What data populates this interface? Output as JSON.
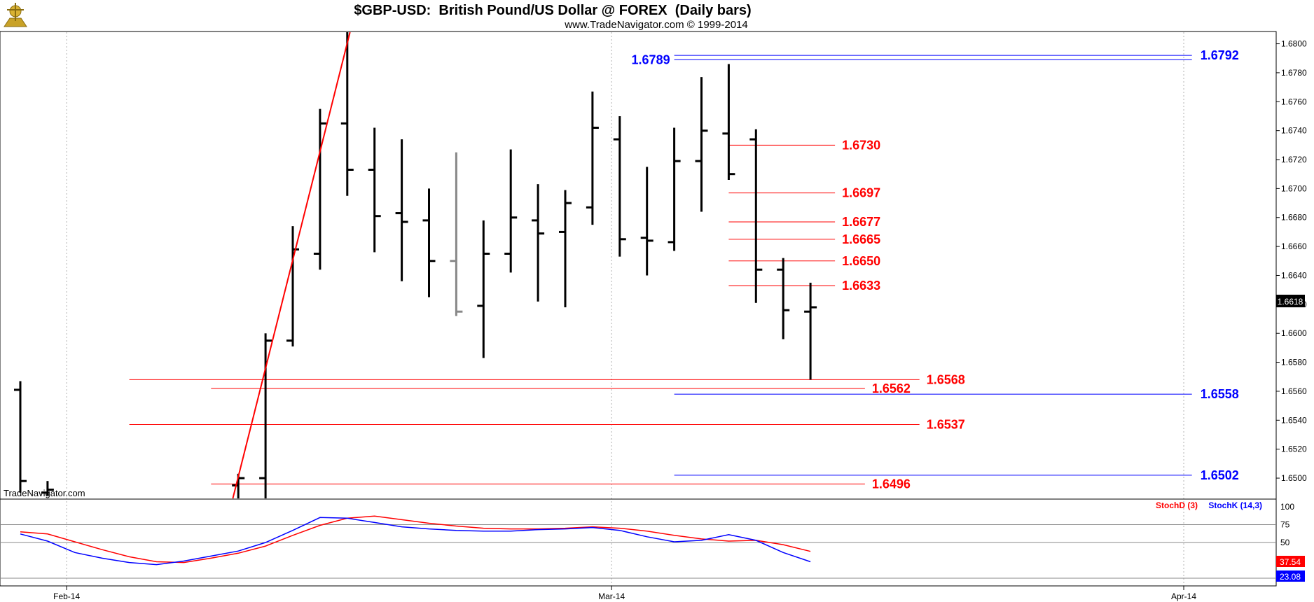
{
  "chart_data": {
    "type": "ohlc",
    "title": "$GBP-USD:  British Pound/US Dollar @ FOREX  (Daily bars)",
    "subtitle": "www.TradeNavigator.com © 1999-2014",
    "watermark": "TradeNavigator.com",
    "last_price": "1.6618",
    "y_ticks": [
      "1.6800",
      "1.6780",
      "1.6760",
      "1.6740",
      "1.6720",
      "1.6700",
      "1.6680",
      "1.6660",
      "1.6640",
      "1.6620",
      "1.6600",
      "1.6580",
      "1.6560",
      "1.6540",
      "1.6520",
      "1.6500"
    ],
    "ylim": [
      1.6486,
      1.6808
    ],
    "x_labels": [
      {
        "label": "Feb-14",
        "index": 1.7
      },
      {
        "label": "Mar-14",
        "index": 21.7
      },
      {
        "label": "Apr-14",
        "index": 42.7
      }
    ],
    "bars": [
      {
        "i": 0,
        "o": 1.6561,
        "h": 1.6567,
        "l": 1.649,
        "c": 1.6498,
        "color": "#000000"
      },
      {
        "i": 1,
        "o": 1.649,
        "h": 1.6498,
        "l": 1.6488,
        "c": 1.6492,
        "color": "#000000"
      },
      {
        "i": 8,
        "o": 1.6495,
        "h": 1.6503,
        "l": 1.648,
        "c": 1.65,
        "color": "#000000"
      },
      {
        "i": 9,
        "o": 1.65,
        "h": 1.66,
        "l": 1.6476,
        "c": 1.6595,
        "color": "#000000"
      },
      {
        "i": 10,
        "o": 1.6595,
        "h": 1.6674,
        "l": 1.6591,
        "c": 1.6658,
        "color": "#000000"
      },
      {
        "i": 11,
        "o": 1.6655,
        "h": 1.6755,
        "l": 1.6644,
        "c": 1.6745,
        "color": "#000000"
      },
      {
        "i": 12,
        "o": 1.6745,
        "h": 1.6808,
        "l": 1.6695,
        "c": 1.6713,
        "color": "#000000"
      },
      {
        "i": 13,
        "o": 1.6713,
        "h": 1.6742,
        "l": 1.6656,
        "c": 1.6681,
        "color": "#000000"
      },
      {
        "i": 14,
        "o": 1.6683,
        "h": 1.6734,
        "l": 1.6636,
        "c": 1.6677,
        "color": "#000000"
      },
      {
        "i": 15,
        "o": 1.6678,
        "h": 1.67,
        "l": 1.6625,
        "c": 1.665,
        "color": "#000000"
      },
      {
        "i": 16,
        "o": 1.665,
        "h": 1.6725,
        "l": 1.6612,
        "c": 1.6615,
        "color": "#888888"
      },
      {
        "i": 17,
        "o": 1.6619,
        "h": 1.6678,
        "l": 1.6583,
        "c": 1.6655,
        "color": "#000000"
      },
      {
        "i": 18,
        "o": 1.6655,
        "h": 1.6727,
        "l": 1.6642,
        "c": 1.668,
        "color": "#000000"
      },
      {
        "i": 19,
        "o": 1.6678,
        "h": 1.6703,
        "l": 1.6622,
        "c": 1.6669,
        "color": "#000000"
      },
      {
        "i": 20,
        "o": 1.667,
        "h": 1.6699,
        "l": 1.6618,
        "c": 1.669,
        "color": "#000000"
      },
      {
        "i": 21,
        "o": 1.6687,
        "h": 1.6767,
        "l": 1.6675,
        "c": 1.6742,
        "color": "#000000"
      },
      {
        "i": 22,
        "o": 1.6734,
        "h": 1.675,
        "l": 1.6653,
        "c": 1.6665,
        "color": "#000000"
      },
      {
        "i": 23,
        "o": 1.6666,
        "h": 1.6715,
        "l": 1.664,
        "c": 1.6664,
        "color": "#000000"
      },
      {
        "i": 24,
        "o": 1.6663,
        "h": 1.6742,
        "l": 1.6657,
        "c": 1.6719,
        "color": "#000000"
      },
      {
        "i": 25,
        "o": 1.6719,
        "h": 1.6777,
        "l": 1.6684,
        "c": 1.674,
        "color": "#000000"
      },
      {
        "i": 26,
        "o": 1.6738,
        "h": 1.6786,
        "l": 1.6706,
        "c": 1.671,
        "color": "#000000"
      },
      {
        "i": 27,
        "o": 1.6734,
        "h": 1.6741,
        "l": 1.6621,
        "c": 1.6644,
        "color": "#000000"
      },
      {
        "i": 28,
        "o": 1.6644,
        "h": 1.6652,
        "l": 1.6596,
        "c": 1.6616,
        "color": "#000000"
      },
      {
        "i": 29,
        "o": 1.6615,
        "h": 1.6635,
        "l": 1.6568,
        "c": 1.6618,
        "color": "#000000"
      }
    ],
    "trendline": {
      "from": {
        "i": 7.8,
        "p": 1.6486
      },
      "to": {
        "i": 12.1,
        "p": 1.6808
      },
      "color": "#ff0000"
    },
    "red_levels": [
      {
        "value": "1.6730",
        "p": 1.673,
        "from": 26.0,
        "to": 29.9
      },
      {
        "value": "1.6697",
        "p": 1.6697,
        "from": 26.0,
        "to": 29.9
      },
      {
        "value": "1.6677",
        "p": 1.6677,
        "from": 26.0,
        "to": 29.9
      },
      {
        "value": "1.6665",
        "p": 1.6665,
        "from": 26.0,
        "to": 29.9
      },
      {
        "value": "1.6650",
        "p": 1.665,
        "from": 26.0,
        "to": 29.9
      },
      {
        "value": "1.6633",
        "p": 1.6633,
        "from": 26.0,
        "to": 29.9
      },
      {
        "value": "1.6568",
        "p": 1.6568,
        "from": 4.0,
        "to": 33.0
      },
      {
        "value": "1.6562",
        "p": 1.6562,
        "from": 7.0,
        "to": 31.0
      },
      {
        "value": "1.6537",
        "p": 1.6537,
        "from": 4.0,
        "to": 33.0
      },
      {
        "value": "1.6496",
        "p": 1.6496,
        "from": 7.0,
        "to": 31.0
      }
    ],
    "blue_levels": [
      {
        "value": "1.6792",
        "p": 1.6792,
        "from": 24.0,
        "to": 43.0
      },
      {
        "value": "1.6789",
        "p": 1.6789,
        "from": 24.0,
        "to": 43.0,
        "label_left": true
      },
      {
        "value": "1.6558",
        "p": 1.6558,
        "from": 24.0,
        "to": 43.0
      },
      {
        "value": "1.6502",
        "p": 1.6502,
        "from": 24.0,
        "to": 43.0
      }
    ],
    "stoch": {
      "ylim": [
        0,
        100
      ],
      "levels": [
        100,
        75,
        50
      ],
      "d_label": "StochD (3)",
      "k_label": "StochK (14,3)",
      "d_value": "37.54",
      "k_value": "23.08",
      "d_color": "#ff0000",
      "k_color": "#0000ff",
      "d": [
        [
          0,
          65
        ],
        [
          1,
          62
        ],
        [
          2,
          51
        ],
        [
          3,
          40
        ],
        [
          4,
          30
        ],
        [
          5,
          23
        ],
        [
          6,
          22
        ],
        [
          7,
          28
        ],
        [
          8,
          35
        ],
        [
          9,
          45
        ],
        [
          10,
          60
        ],
        [
          11,
          74
        ],
        [
          12,
          84
        ],
        [
          13,
          87
        ],
        [
          14,
          82
        ],
        [
          15,
          77
        ],
        [
          16,
          73
        ],
        [
          17,
          70
        ],
        [
          18,
          69
        ],
        [
          19,
          69
        ],
        [
          20,
          70
        ],
        [
          21,
          72
        ],
        [
          22,
          70
        ],
        [
          23,
          66
        ],
        [
          24,
          60
        ],
        [
          25,
          55
        ],
        [
          26,
          52
        ],
        [
          27,
          53
        ],
        [
          28,
          47
        ],
        [
          29,
          37.54
        ]
      ],
      "k": [
        [
          0,
          62
        ],
        [
          1,
          52
        ],
        [
          2,
          36
        ],
        [
          3,
          28
        ],
        [
          4,
          22
        ],
        [
          5,
          19
        ],
        [
          6,
          24
        ],
        [
          7,
          31
        ],
        [
          8,
          38
        ],
        [
          9,
          50
        ],
        [
          10,
          67
        ],
        [
          11,
          85
        ],
        [
          12,
          84
        ],
        [
          13,
          78
        ],
        [
          14,
          72
        ],
        [
          15,
          69
        ],
        [
          16,
          67
        ],
        [
          17,
          66
        ],
        [
          18,
          66
        ],
        [
          19,
          68
        ],
        [
          20,
          69
        ],
        [
          21,
          71
        ],
        [
          22,
          67
        ],
        [
          23,
          58
        ],
        [
          24,
          51
        ],
        [
          25,
          53
        ],
        [
          26,
          61
        ],
        [
          27,
          53
        ],
        [
          28,
          36
        ],
        [
          29,
          23.08
        ]
      ]
    }
  }
}
